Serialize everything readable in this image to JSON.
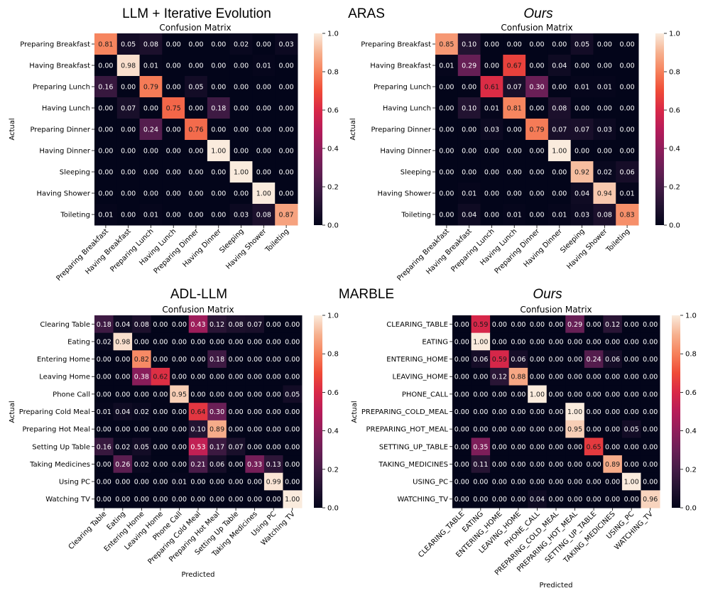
{
  "headings": {
    "top_left": "LLM + Iterative Evolution",
    "top_center": "ARAS",
    "top_right": "Ours",
    "bottom_left": "ADL-LLM",
    "bottom_center": "MARBLE",
    "bottom_right": "Ours"
  },
  "chart_data": [
    {
      "type": "heatmap",
      "title": "Confusion Matrix",
      "ylabel": "Actual",
      "xlabel": "",
      "vmin": 0,
      "vmax": 1,
      "colorbar_ticks": [
        "0.0",
        "0.2",
        "0.4",
        "0.6",
        "0.8",
        "1.0"
      ],
      "labels": [
        "Preparing Breakfast",
        "Having Breakfast",
        "Preparing Lunch",
        "Having Lunch",
        "Preparing Dinner",
        "Having Dinner",
        "Sleeping",
        "Having Shower",
        "Toileting"
      ],
      "matrix": [
        [
          0.81,
          0.05,
          0.08,
          0.0,
          0.0,
          0.0,
          0.02,
          0.0,
          0.03
        ],
        [
          0.0,
          0.98,
          0.01,
          0.0,
          0.0,
          0.0,
          0.0,
          0.01,
          0.0
        ],
        [
          0.16,
          0.0,
          0.79,
          0.0,
          0.05,
          0.0,
          0.0,
          0.0,
          0.0
        ],
        [
          0.0,
          0.07,
          0.0,
          0.75,
          0.0,
          0.18,
          0.0,
          0.0,
          0.0
        ],
        [
          0.0,
          0.0,
          0.24,
          0.0,
          0.76,
          0.0,
          0.0,
          0.0,
          0.0
        ],
        [
          0.0,
          0.0,
          0.0,
          0.0,
          0.0,
          1.0,
          0.0,
          0.0,
          0.0
        ],
        [
          0.0,
          0.0,
          0.0,
          0.0,
          0.0,
          0.0,
          1.0,
          0.0,
          0.0
        ],
        [
          0.0,
          0.0,
          0.0,
          0.0,
          0.0,
          0.0,
          0.0,
          1.0,
          0.0
        ],
        [
          0.01,
          0.0,
          0.01,
          0.0,
          0.0,
          0.0,
          0.03,
          0.08,
          0.87
        ]
      ]
    },
    {
      "type": "heatmap",
      "title": "Confusion Matrix",
      "ylabel": "Actual",
      "xlabel": "",
      "vmin": 0,
      "vmax": 1,
      "colorbar_ticks": [
        "0.0",
        "0.2",
        "0.4",
        "0.6",
        "0.8",
        "1.0"
      ],
      "labels": [
        "Preparing Breakfast",
        "Having Breakfast",
        "Preparing Lunch",
        "Having Lunch",
        "Preparing Dinner",
        "Having Dinner",
        "Sleeping",
        "Having Shower",
        "Toileting"
      ],
      "matrix": [
        [
          0.85,
          0.1,
          0.0,
          0.0,
          0.0,
          0.0,
          0.05,
          0.0,
          0.0
        ],
        [
          0.01,
          0.29,
          0.0,
          0.67,
          0.0,
          0.04,
          0.0,
          0.0,
          0.0
        ],
        [
          0.0,
          0.0,
          0.61,
          0.07,
          0.3,
          0.0,
          0.01,
          0.01,
          0.0
        ],
        [
          0.0,
          0.1,
          0.01,
          0.81,
          0.0,
          0.08,
          0.0,
          0.0,
          0.0
        ],
        [
          0.0,
          0.0,
          0.03,
          0.0,
          0.79,
          0.07,
          0.07,
          0.03,
          0.0
        ],
        [
          0.0,
          0.0,
          0.0,
          0.0,
          0.0,
          1.0,
          0.0,
          0.0,
          0.0
        ],
        [
          0.0,
          0.0,
          0.0,
          0.0,
          0.0,
          0.0,
          0.92,
          0.02,
          0.06
        ],
        [
          0.0,
          0.01,
          0.0,
          0.0,
          0.0,
          0.0,
          0.04,
          0.94,
          0.01
        ],
        [
          0.0,
          0.04,
          0.0,
          0.01,
          0.0,
          0.01,
          0.03,
          0.08,
          0.83
        ]
      ]
    },
    {
      "type": "heatmap",
      "title": "Confusion Matrix",
      "ylabel": "Actual",
      "xlabel": "Predicted",
      "vmin": 0,
      "vmax": 1,
      "colorbar_ticks": [
        "0.0",
        "0.2",
        "0.4",
        "0.6",
        "0.8",
        "1.0"
      ],
      "labels": [
        "Clearing Table",
        "Eating",
        "Entering Home",
        "Leaving Home",
        "Phone Call",
        "Preparing Cold Meal",
        "Preparing Hot Meal",
        "Setting Up Table",
        "Taking Medicines",
        "Using PC",
        "Watching TV"
      ],
      "matrix": [
        [
          0.18,
          0.04,
          0.08,
          0.0,
          0.0,
          0.43,
          0.12,
          0.08,
          0.07,
          0.0,
          0.0
        ],
        [
          0.02,
          0.98,
          0.0,
          0.0,
          0.0,
          0.0,
          0.0,
          0.0,
          0.0,
          0.0,
          0.0
        ],
        [
          0.0,
          0.0,
          0.82,
          0.0,
          0.0,
          0.0,
          0.18,
          0.0,
          0.0,
          0.0,
          0.0
        ],
        [
          0.0,
          0.0,
          0.38,
          0.62,
          0.0,
          0.0,
          0.0,
          0.0,
          0.0,
          0.0,
          0.0
        ],
        [
          0.0,
          0.0,
          0.0,
          0.0,
          0.95,
          0.0,
          0.0,
          0.0,
          0.0,
          0.0,
          0.05
        ],
        [
          0.01,
          0.04,
          0.02,
          0.0,
          0.0,
          0.64,
          0.3,
          0.0,
          0.0,
          0.0,
          0.0
        ],
        [
          0.0,
          0.0,
          0.0,
          0.0,
          0.0,
          0.1,
          0.89,
          0.0,
          0.0,
          0.0,
          0.0
        ],
        [
          0.16,
          0.02,
          0.05,
          0.0,
          0.0,
          0.53,
          0.17,
          0.07,
          0.0,
          0.0,
          0.0
        ],
        [
          0.0,
          0.26,
          0.02,
          0.0,
          0.0,
          0.21,
          0.06,
          0.0,
          0.33,
          0.13,
          0.0
        ],
        [
          0.0,
          0.0,
          0.0,
          0.0,
          0.01,
          0.0,
          0.0,
          0.0,
          0.0,
          0.99,
          0.0
        ],
        [
          0.0,
          0.0,
          0.0,
          0.0,
          0.0,
          0.0,
          0.0,
          0.0,
          0.0,
          0.0,
          1.0
        ]
      ]
    },
    {
      "type": "heatmap",
      "title": "Confusion Matrix",
      "ylabel": "Actual",
      "xlabel": "Predicted",
      "vmin": 0,
      "vmax": 1,
      "colorbar_ticks": [
        "0.0",
        "0.2",
        "0.4",
        "0.6",
        "0.8",
        "1.0"
      ],
      "labels": [
        "CLEARING_TABLE",
        "EATING",
        "ENTERING_HOME",
        "LEAVING_HOME",
        "PHONE_CALL",
        "PREPARING_COLD_MEAL",
        "PREPARING_HOT_MEAL",
        "SETTING_UP_TABLE",
        "TAKING_MEDICINES",
        "USING_PC",
        "WATCHING_TV"
      ],
      "matrix": [
        [
          0.0,
          0.59,
          0.0,
          0.0,
          0.0,
          0.0,
          0.29,
          0.0,
          0.12,
          0.0,
          0.0
        ],
        [
          0.0,
          1.0,
          0.0,
          0.0,
          0.0,
          0.0,
          0.0,
          0.0,
          0.0,
          0.0,
          0.0
        ],
        [
          0.0,
          0.06,
          0.59,
          0.06,
          0.0,
          0.0,
          0.0,
          0.24,
          0.06,
          0.0,
          0.0
        ],
        [
          0.0,
          0.0,
          0.12,
          0.88,
          0.0,
          0.0,
          0.0,
          0.0,
          0.0,
          0.0,
          0.0
        ],
        [
          0.0,
          0.0,
          0.0,
          0.0,
          1.0,
          0.0,
          0.0,
          0.0,
          0.0,
          0.0,
          0.0
        ],
        [
          0.0,
          0.0,
          0.0,
          0.0,
          0.0,
          0.0,
          1.0,
          0.0,
          0.0,
          0.0,
          0.0
        ],
        [
          0.0,
          0.0,
          0.0,
          0.0,
          0.0,
          0.0,
          0.95,
          0.0,
          0.0,
          0.05,
          0.0
        ],
        [
          0.0,
          0.35,
          0.0,
          0.0,
          0.0,
          0.0,
          0.0,
          0.65,
          0.0,
          0.0,
          0.0
        ],
        [
          0.0,
          0.11,
          0.0,
          0.0,
          0.0,
          0.0,
          0.0,
          0.0,
          0.89,
          0.0,
          0.0
        ],
        [
          0.0,
          0.0,
          0.0,
          0.0,
          0.0,
          0.0,
          0.0,
          0.0,
          0.0,
          1.0,
          0.0
        ],
        [
          0.0,
          0.0,
          0.0,
          0.0,
          0.04,
          0.0,
          0.0,
          0.0,
          0.0,
          0.0,
          0.96
        ]
      ]
    }
  ]
}
